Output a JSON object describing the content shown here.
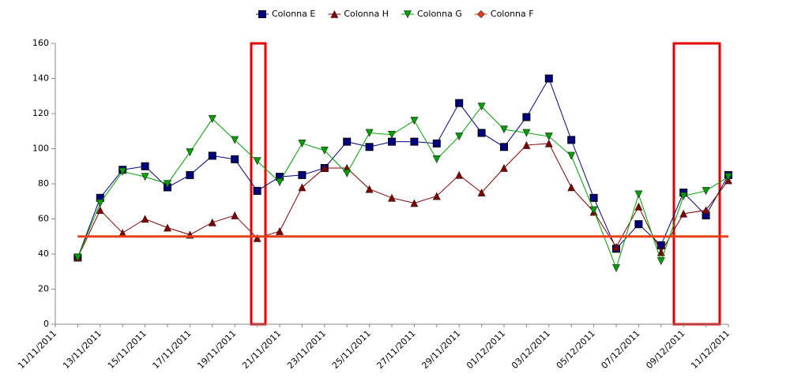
{
  "chart_data": {
    "type": "line",
    "categories": [
      "11/11/2011",
      null,
      "13/11/2011",
      null,
      "15/11/2011",
      null,
      "17/11/2011",
      null,
      "19/11/2011",
      null,
      "21/11/2011",
      null,
      "23/11/2011",
      null,
      "25/11/2011",
      null,
      "27/11/2011",
      null,
      "29/11/2011",
      null,
      "01/12/2011",
      null,
      "03/12/2011",
      null,
      "05/12/2011",
      null,
      "07/12/2011",
      null,
      "09/12/2011",
      null,
      "11/12/2011"
    ],
    "series": [
      {
        "name": "Colonna E",
        "color": "#000080",
        "marker": "square",
        "values": [
          null,
          38,
          72,
          88,
          90,
          78,
          85,
          96,
          94,
          76,
          84,
          85,
          89,
          104,
          101,
          104,
          104,
          103,
          126,
          109,
          101,
          118,
          140,
          105,
          72,
          43,
          57,
          45,
          75,
          62,
          85
        ]
      },
      {
        "name": "Colonna H",
        "color": "#800000",
        "marker": "triangle-up",
        "values": [
          null,
          38,
          65,
          52,
          60,
          55,
          51,
          58,
          62,
          49,
          53,
          78,
          89,
          89,
          77,
          72,
          69,
          73,
          85,
          75,
          89,
          102,
          103,
          78,
          64,
          44,
          67,
          41,
          63,
          65,
          82
        ]
      },
      {
        "name": "Colonna G",
        "color": "#00a000",
        "marker": "triangle-down",
        "values": [
          null,
          38,
          69,
          87,
          84,
          80,
          98,
          117,
          105,
          93,
          81,
          103,
          99,
          86,
          109,
          108,
          116,
          94,
          107,
          124,
          111,
          109,
          107,
          96,
          65,
          32,
          74,
          36,
          73,
          76,
          84
        ]
      },
      {
        "name": "Colonna F",
        "color": "#e8401c",
        "marker": "diamond",
        "values": [
          null,
          50,
          50,
          50,
          50,
          50,
          50,
          50,
          50,
          50,
          50,
          50,
          50,
          50,
          50,
          50,
          50,
          50,
          50,
          50,
          50,
          50,
          50,
          50,
          50,
          50,
          50,
          50,
          50,
          50,
          50
        ]
      }
    ],
    "ylim": [
      0,
      160
    ],
    "yticks": [
      0,
      20,
      40,
      60,
      80,
      100,
      120,
      140,
      160
    ],
    "grid": false,
    "legend": "top"
  }
}
